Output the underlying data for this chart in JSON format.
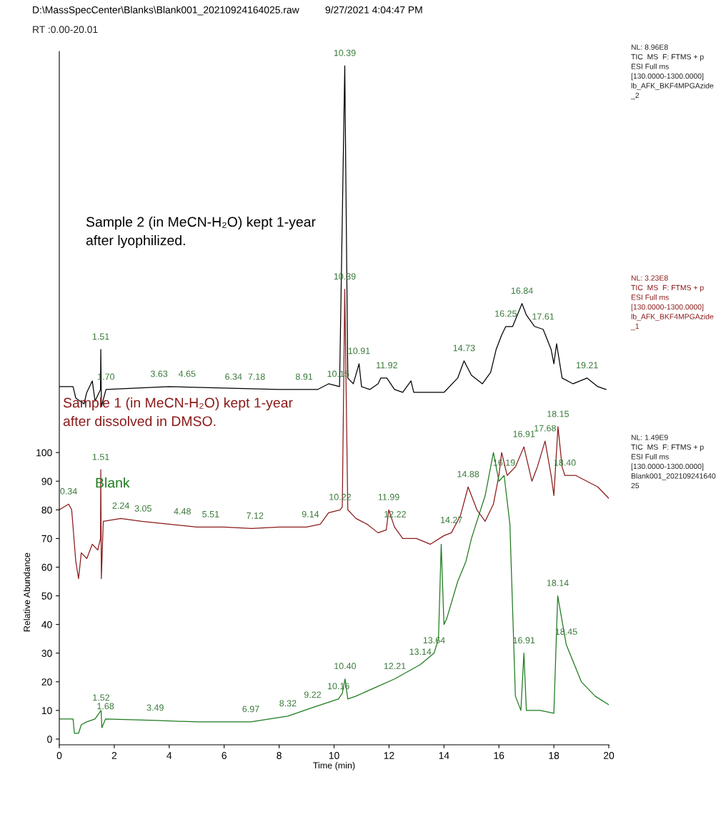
{
  "chart_data": {
    "type": "line",
    "title": "D:\\MassSpecCenter\\Blanks\\Blank001_20210924164025.raw",
    "subtitle": "9/27/2021 4:04:47 PM",
    "xlabel": "Time (min)",
    "ylabel": "Relative Abundance",
    "xlim": [
      0,
      20
    ],
    "ylim": [
      -2,
      240
    ],
    "xticks": [
      0,
      2,
      4,
      6,
      8,
      10,
      12,
      14,
      16,
      18,
      20
    ],
    "yticks": [
      0,
      10,
      20,
      30,
      40,
      50,
      60,
      70,
      80,
      90,
      100
    ],
    "grid": false,
    "legend": false,
    "marker": "none",
    "line_style": "solid",
    "series": [
      {
        "name": "Sample 2 (in MeCN-H₂O) kept 1-year\nafter lyophilized.",
        "color": "#000000",
        "x": [
          0,
          0.5,
          0.6,
          0.9,
          1.0,
          1.2,
          1.3,
          1.5,
          1.51,
          1.53,
          1.7,
          4,
          8,
          9.4,
          9.8,
          10.2,
          10.39,
          10.5,
          10.7,
          10.91,
          11.0,
          11.3,
          11.6,
          11.7,
          11.92,
          12.2,
          12.5,
          12.8,
          12.9,
          13.2,
          14.0,
          14.5,
          14.73,
          15.0,
          15.4,
          15.7,
          15.9,
          16.1,
          16.25,
          16.5,
          16.84,
          17.0,
          17.3,
          17.61,
          17.9,
          18.0,
          18.1,
          18.3,
          18.7,
          19.21,
          19.6,
          19.9
        ],
        "values": [
          123,
          123,
          119,
          117,
          121,
          125,
          118,
          122,
          136,
          116,
          122,
          123,
          122,
          122,
          124,
          123,
          235,
          126,
          124,
          131,
          123,
          122,
          124,
          126,
          126,
          122,
          121,
          125,
          121,
          121,
          121,
          126,
          132,
          127,
          124,
          128,
          136,
          141,
          144,
          144,
          152,
          148,
          144,
          143,
          136,
          131,
          138,
          126,
          124,
          126,
          123,
          122
        ]
      },
      {
        "name": "Sample 1 (in MeCN-H₂O) kept 1-year\nafter dissolved in DMSO.",
        "color": "#8b1a1a",
        "x": [
          0,
          0.34,
          0.45,
          0.6,
          0.7,
          0.8,
          1.0,
          1.2,
          1.4,
          1.5,
          1.51,
          1.53,
          1.6,
          2.24,
          3,
          4,
          5,
          6,
          7,
          8,
          9,
          9.5,
          9.8,
          10.22,
          10.3,
          10.39,
          10.5,
          10.8,
          11.2,
          11.6,
          11.9,
          11.99,
          12.2,
          12.5,
          13,
          13.5,
          14.0,
          14.27,
          14.6,
          14.88,
          15.2,
          15.5,
          15.8,
          16.0,
          16.1,
          16.3,
          16.6,
          16.91,
          17.2,
          17.4,
          17.68,
          17.9,
          18.0,
          18.15,
          18.3,
          18.4,
          18.8,
          19.2,
          19.6,
          20
        ],
        "values": [
          80,
          82,
          80,
          62,
          56,
          65,
          63,
          68,
          66,
          70,
          94,
          56,
          76,
          77,
          76,
          75,
          74,
          74,
          73.5,
          74,
          74,
          75,
          79,
          80,
          81,
          157,
          80,
          77,
          75,
          72,
          73,
          80,
          74,
          70,
          70,
          68,
          71,
          72,
          78,
          88,
          80,
          76,
          82,
          92,
          100,
          92,
          95,
          102,
          90,
          95,
          104,
          92,
          85,
          109,
          95,
          92,
          92,
          90,
          88,
          84
        ]
      },
      {
        "name": "Blank",
        "color": "#1e7b1e",
        "x": [
          0,
          0.5,
          0.55,
          0.7,
          0.8,
          1.0,
          1.3,
          1.52,
          1.55,
          1.68,
          3.49,
          5,
          6.97,
          8.32,
          9.22,
          10.16,
          10.3,
          10.4,
          10.5,
          10.8,
          11.5,
          12.21,
          13.14,
          13.64,
          13.8,
          13.9,
          14.0,
          14.1,
          14.5,
          14.8,
          15,
          15.5,
          15.8,
          16.0,
          16.19,
          16.4,
          16.6,
          16.8,
          16.91,
          17.0,
          17.5,
          18.0,
          18.14,
          18.45,
          19,
          19.5,
          20
        ],
        "values": [
          7,
          7,
          2,
          2,
          5,
          6,
          7,
          10,
          4,
          7,
          6.5,
          6,
          6,
          8,
          11,
          14,
          16,
          21,
          14,
          15,
          18,
          21,
          26,
          30,
          35,
          68,
          40,
          42,
          55,
          62,
          70,
          85,
          100,
          90,
          92,
          75,
          15,
          10,
          30,
          10,
          10,
          9,
          50,
          33,
          20,
          15,
          12
        ]
      }
    ],
    "annotations": [
      "RT :0.00-20.01",
      "NL: 8.96E8\nTIC  MS  F: FTMS + p\nESI Full ms\n[130.0000-1300.0000]\nlb_AFK_BKF4MPGAzide\n_2",
      "NL: 3.23E8\nTIC  MS  F: FTMS + p\nESI Full ms\n[130.0000-1300.0000]\nlb_AFK_BKF4MPGAzide\n_1",
      "NL: 1.49E9\nTIC  MS  F: FTMS + p\nESI Full ms\n[130.0000-1300.0000]\nBlank001_202109241640\n25",
      {
        "text": "10.39",
        "x": 10.39,
        "y": 235
      },
      {
        "text": "1.51",
        "x": 1.51,
        "y": 136
      },
      {
        "text": "1.70",
        "x": 1.7,
        "y": 122
      },
      {
        "text": "3.63",
        "x": 3.63,
        "y": 123
      },
      {
        "text": "4.65",
        "x": 4.65,
        "y": 123
      },
      {
        "text": "6.34",
        "x": 6.34,
        "y": 122
      },
      {
        "text": "7.18",
        "x": 7.18,
        "y": 122
      },
      {
        "text": "8.91",
        "x": 8.91,
        "y": 122
      },
      {
        "text": "10.15",
        "x": 10.15,
        "y": 123
      },
      {
        "text": "10.91",
        "x": 10.91,
        "y": 131
      },
      {
        "text": "11.92",
        "x": 11.92,
        "y": 126
      },
      {
        "text": "14.73",
        "x": 14.73,
        "y": 132
      },
      {
        "text": "16.25",
        "x": 16.25,
        "y": 144
      },
      {
        "text": "16.84",
        "x": 16.84,
        "y": 152
      },
      {
        "text": "17.61",
        "x": 17.61,
        "y": 143
      },
      {
        "text": "19.21",
        "x": 19.21,
        "y": 126
      },
      {
        "text": "10.39",
        "x": 10.39,
        "y": 157
      },
      {
        "text": "0.34",
        "x": 0.34,
        "y": 82
      },
      {
        "text": "1.51",
        "x": 1.51,
        "y": 94
      },
      {
        "text": "2.24",
        "x": 2.24,
        "y": 77
      },
      {
        "text": "3.05",
        "x": 3.05,
        "y": 76
      },
      {
        "text": "4.48",
        "x": 4.48,
        "y": 75
      },
      {
        "text": "5.51",
        "x": 5.51,
        "y": 74
      },
      {
        "text": "7.12",
        "x": 7.12,
        "y": 73.5
      },
      {
        "text": "9.14",
        "x": 9.14,
        "y": 74
      },
      {
        "text": "10.22",
        "x": 10.22,
        "y": 80
      },
      {
        "text": "11.99",
        "x": 11.99,
        "y": 80
      },
      {
        "text": "12.22",
        "x": 12.22,
        "y": 74
      },
      {
        "text": "14.27",
        "x": 14.27,
        "y": 72
      },
      {
        "text": "14.88",
        "x": 14.88,
        "y": 88
      },
      {
        "text": "16.91",
        "x": 16.91,
        "y": 102
      },
      {
        "text": "17.68",
        "x": 17.68,
        "y": 104
      },
      {
        "text": "18.15",
        "x": 18.15,
        "y": 109
      },
      {
        "text": "18.40",
        "x": 18.4,
        "y": 92
      },
      {
        "text": "1.52",
        "x": 1.52,
        "y": 10
      },
      {
        "text": "1.68",
        "x": 1.68,
        "y": 7
      },
      {
        "text": "3.49",
        "x": 3.49,
        "y": 6.5
      },
      {
        "text": "6.97",
        "x": 6.97,
        "y": 6
      },
      {
        "text": "8.32",
        "x": 8.32,
        "y": 8
      },
      {
        "text": "9.22",
        "x": 9.22,
        "y": 11
      },
      {
        "text": "10.16",
        "x": 10.16,
        "y": 14
      },
      {
        "text": "10.40",
        "x": 10.4,
        "y": 21
      },
      {
        "text": "12.21",
        "x": 12.21,
        "y": 21
      },
      {
        "text": "13.14",
        "x": 13.14,
        "y": 26
      },
      {
        "text": "13.64",
        "x": 13.64,
        "y": 30
      },
      {
        "text": "16.19",
        "x": 16.19,
        "y": 92
      },
      {
        "text": "16.91",
        "x": 16.91,
        "y": 30
      },
      {
        "text": "18.14",
        "x": 18.14,
        "y": 50
      },
      {
        "text": "18.45",
        "x": 18.45,
        "y": 33
      }
    ]
  }
}
